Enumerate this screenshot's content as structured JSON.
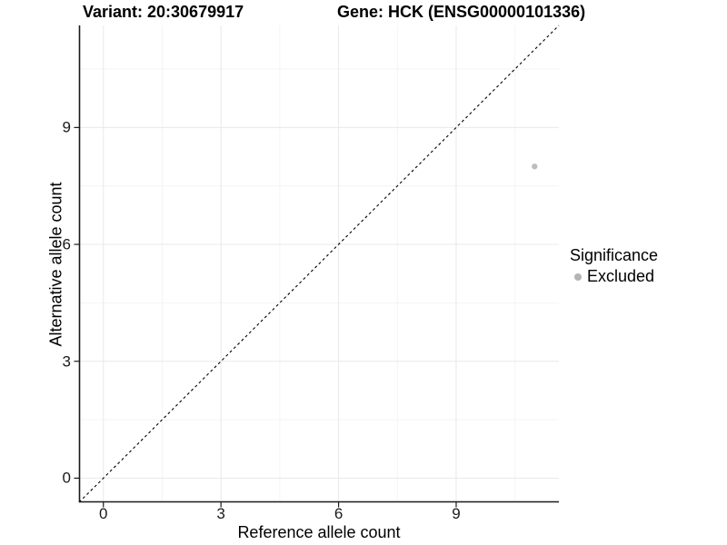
{
  "chart_data": {
    "type": "scatter",
    "title_left": "Variant: 20:30679917",
    "title_right": "Gene: HCK (ENSG00000101336)",
    "xlabel": "Reference allele count",
    "ylabel": "Alternative allele count",
    "xlim": [
      -0.62,
      11.62
    ],
    "ylim": [
      -0.62,
      11.62
    ],
    "x_major_ticks": [
      0,
      3,
      6,
      9
    ],
    "y_major_ticks": [
      0,
      3,
      6,
      9
    ],
    "x_minor_ticks": [
      1.5,
      4.5,
      7.5,
      10.5
    ],
    "y_minor_ticks": [
      1.5,
      4.5,
      7.5,
      10.5
    ],
    "grid": true,
    "legend_position": "right",
    "reference_line": {
      "slope": 1,
      "intercept": 0,
      "style": "dashed",
      "color": "#000000"
    },
    "series": [
      {
        "name": "Excluded",
        "color": "#bdbdbd",
        "points": [
          [
            11,
            8
          ]
        ]
      }
    ],
    "legend": {
      "title": "Significance",
      "items": [
        {
          "label": "Excluded",
          "color": "#b4b4b4"
        }
      ]
    },
    "colors": {
      "background": "#ffffff",
      "axis_line": "#1a1a1a",
      "tick_mark": "#1a1a1a",
      "grid_major": "#e8e8e8",
      "grid_minor": "#f4f4f4"
    }
  }
}
